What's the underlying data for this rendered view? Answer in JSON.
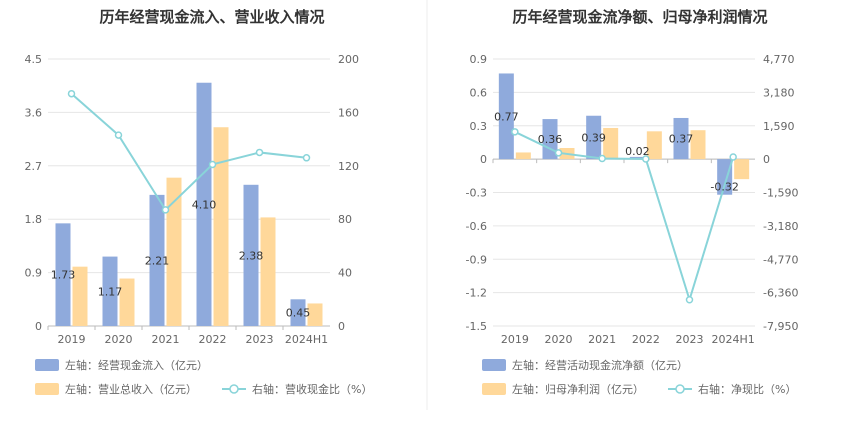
{
  "colors": {
    "bar_blue": "#8FAADC",
    "bar_orange": "#FFD89A",
    "line": "#89D4D9",
    "divider": "#eeeeee"
  },
  "chart_data": [
    {
      "type": "bar",
      "title": "历年经营现金流入、营业收入情况",
      "categories": [
        "2019",
        "2020",
        "2021",
        "2022",
        "2023",
        "2024H1"
      ],
      "left_axis": {
        "min": 0,
        "max": 4.5,
        "ticks": [
          "0",
          "0.9",
          "1.8",
          "2.7",
          "3.6",
          "4.5"
        ]
      },
      "right_axis": {
        "min": 0,
        "max": 200,
        "ticks": [
          "0",
          "40",
          "80",
          "120",
          "160",
          "200"
        ]
      },
      "series": [
        {
          "name": "经营现金流入",
          "axis": "left",
          "kind": "bar",
          "values": [
            1.73,
            1.17,
            2.21,
            4.1,
            2.38,
            0.45
          ],
          "labels": [
            "1.73",
            "1.17",
            "2.21",
            "4.10",
            "2.38",
            "0.45"
          ]
        },
        {
          "name": "营业总收入",
          "axis": "left",
          "kind": "bar",
          "values": [
            1.0,
            0.8,
            2.5,
            3.35,
            1.83,
            0.38
          ]
        },
        {
          "name": "营收现金比",
          "axis": "right",
          "kind": "line",
          "values": [
            174,
            143,
            87,
            121,
            130,
            126
          ]
        }
      ],
      "legend": [
        "左轴：经营现金流入（亿元）",
        "左轴：营业总收入（亿元）",
        "右轴：营收现金比（%）"
      ]
    },
    {
      "type": "bar",
      "title": "历年经营现金流净额、归母净利润情况",
      "categories": [
        "2019",
        "2020",
        "2021",
        "2022",
        "2023",
        "2024H1"
      ],
      "left_axis": {
        "min": -1.5,
        "max": 0.9,
        "ticks": [
          "-1.5",
          "-1.2",
          "-0.9",
          "-0.6",
          "-0.3",
          "0",
          "0.3",
          "0.6",
          "0.9"
        ]
      },
      "right_axis": {
        "min": -7950,
        "max": 4770,
        "ticks": [
          "-7,950",
          "-6,360",
          "-4,770",
          "-3,180",
          "-1,590",
          "0",
          "1,590",
          "3,180",
          "4,770"
        ]
      },
      "series": [
        {
          "name": "经营活动现金流净额",
          "axis": "left",
          "kind": "bar",
          "values": [
            0.77,
            0.36,
            0.39,
            0.02,
            0.37,
            -0.32
          ],
          "labels": [
            "0.77",
            "0.36",
            "0.39",
            "0.02",
            "0.37",
            "-0.32"
          ]
        },
        {
          "name": "归母净利润",
          "axis": "left",
          "kind": "bar",
          "values": [
            0.06,
            0.1,
            0.28,
            0.25,
            0.26,
            -0.18
          ]
        },
        {
          "name": "净现比",
          "axis": "right",
          "kind": "line",
          "values": [
            1300,
            300,
            30,
            5,
            -6700,
            100
          ]
        }
      ],
      "legend": [
        "左轴：经营活动现金流净额（亿元）",
        "左轴：归母净利润（亿元）",
        "右轴：净现比（%）"
      ]
    }
  ]
}
